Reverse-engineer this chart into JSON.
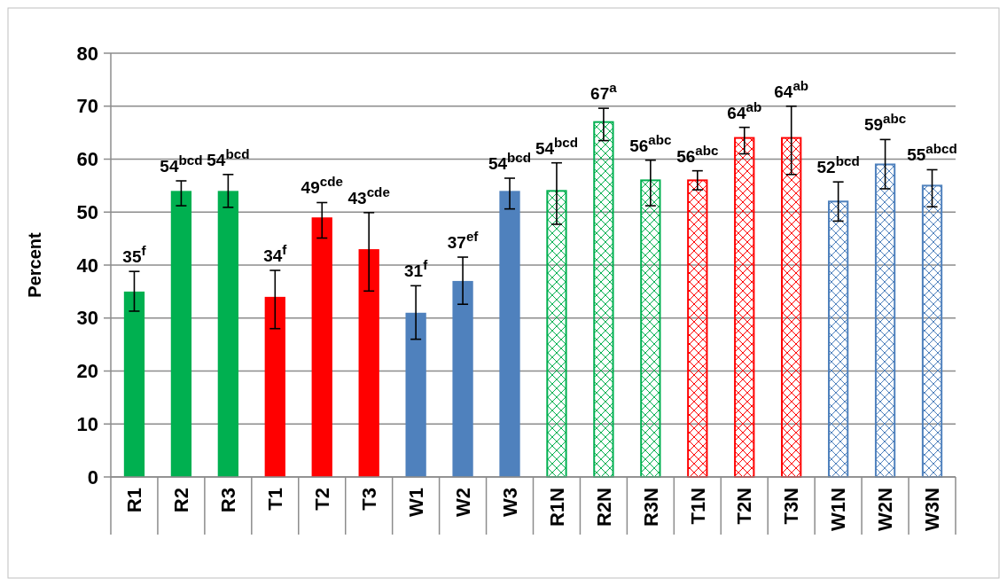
{
  "chart_data": {
    "type": "bar",
    "ylabel": "Percent",
    "categories": [
      "R1",
      "R2",
      "R3",
      "T1",
      "T2",
      "T3",
      "W1",
      "W2",
      "W3",
      "R1N",
      "R2N",
      "R3N",
      "T1N",
      "T2N",
      "T3N",
      "W1N",
      "W2N",
      "W3N"
    ],
    "series": [
      {
        "colors": [
          "#00b050",
          "#00b050",
          "#00b050",
          "#ff0000",
          "#ff0000",
          "#ff0000",
          "#4f81bd",
          "#4f81bd",
          "#4f81bd",
          null,
          null,
          null,
          null,
          null,
          null,
          null,
          null,
          null
        ],
        "values": [
          35,
          54,
          54,
          34,
          49,
          43,
          31,
          37,
          54,
          null,
          null,
          null,
          null,
          null,
          null,
          null,
          null,
          null
        ],
        "errors": [
          [
            31.3,
            38.8
          ],
          [
            51.2,
            55.9
          ],
          [
            50.9,
            57.1
          ],
          [
            28,
            39
          ],
          [
            45.1,
            51.8
          ],
          [
            35.1,
            49.9
          ],
          [
            26,
            36.1
          ],
          [
            32.6,
            41.5
          ],
          [
            50.6,
            56.4
          ],
          null,
          null,
          null,
          null,
          null,
          null,
          null,
          null,
          null
        ],
        "value_labels": [
          "35$^{f}$",
          "54$^{bcd}$",
          "54$^{bcd}$",
          "34$^{f}$",
          "49$^{cde}$",
          "43$^{cde}$",
          "31$^{f}$",
          "37$^{ef}$",
          "54$^{bcd}$",
          null,
          null,
          null,
          null,
          null,
          null,
          null,
          null,
          null
        ]
      },
      {
        "colors": [
          null,
          null,
          null,
          null,
          null,
          null,
          null,
          null,
          null,
          "#00b050",
          "#00b050",
          "#00b050",
          "#ff0000",
          "#ff0000",
          "#ff0000",
          "#4f81bd",
          "#4f81bd",
          "#4f81bd"
        ],
        "values": [
          null,
          null,
          null,
          null,
          null,
          null,
          null,
          null,
          null,
          54,
          67,
          56,
          56,
          64,
          64,
          52,
          59,
          55
        ],
        "errors": [
          null,
          null,
          null,
          null,
          null,
          null,
          null,
          null,
          null,
          [
            47.7,
            59.3
          ],
          [
            63.5,
            69.6
          ],
          [
            51.2,
            59.8
          ],
          [
            54.2,
            57.8
          ],
          [
            61,
            66
          ],
          [
            57.1,
            70
          ],
          [
            48.3,
            55.7
          ],
          [
            54.4,
            63.7
          ],
          [
            51,
            58
          ]
        ],
        "value_labels": [
          null,
          null,
          null,
          null,
          null,
          null,
          null,
          null,
          null,
          "54$^{bcd}$",
          "67$^{a}$",
          "56$^{abc}$",
          "56$^{abc}$",
          "64$^{ab}$",
          "64$^{ab}$",
          "52$^{bcd}$",
          "59$^{abc}$",
          "55$^{abcd}$"
        ]
      }
    ],
    "ylim": [
      0,
      80
    ],
    "yticks": [
      0,
      10,
      20,
      30,
      40,
      50,
      60,
      70,
      80
    ],
    "grid": "y"
  }
}
